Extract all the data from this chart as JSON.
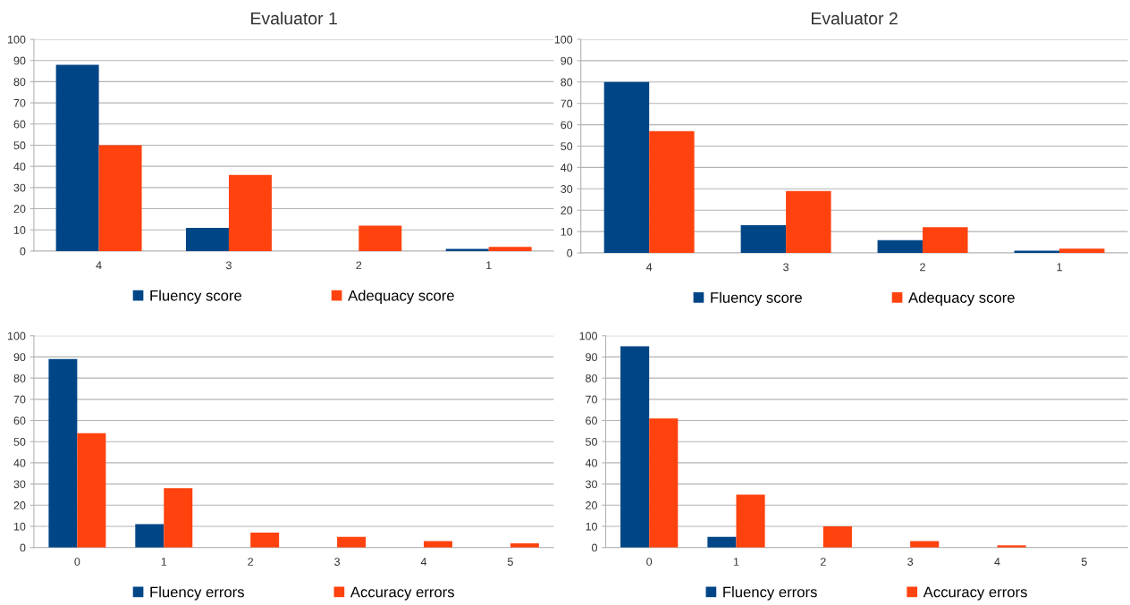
{
  "chart_data": [
    {
      "type": "bar",
      "title": "Evaluator 1",
      "categories": [
        "4",
        "3",
        "2",
        "1"
      ],
      "ylim": [
        0,
        100
      ],
      "yticks": [
        0,
        10,
        20,
        30,
        40,
        50,
        60,
        70,
        80,
        90,
        100
      ],
      "grid": "y",
      "legend": "bottom",
      "series": [
        {
          "name": "Fluency score",
          "color": "#004586",
          "values": [
            88,
            11,
            0,
            1
          ]
        },
        {
          "name": "Adequacy score",
          "color": "#ff420e",
          "values": [
            50,
            36,
            12,
            2
          ]
        }
      ]
    },
    {
      "type": "bar",
      "title": "Evaluator 2",
      "categories": [
        "4",
        "3",
        "2",
        "1"
      ],
      "ylim": [
        0,
        100
      ],
      "yticks": [
        0,
        10,
        20,
        30,
        40,
        50,
        60,
        70,
        80,
        90,
        100
      ],
      "grid": "y",
      "legend": "bottom",
      "series": [
        {
          "name": "Fluency score",
          "color": "#004586",
          "values": [
            80,
            13,
            6,
            1
          ]
        },
        {
          "name": "Adequacy score",
          "color": "#ff420e",
          "values": [
            57,
            29,
            12,
            2
          ]
        }
      ]
    },
    {
      "type": "bar",
      "categories": [
        "0",
        "1",
        "2",
        "3",
        "4",
        "5"
      ],
      "ylim": [
        0,
        100
      ],
      "yticks": [
        0,
        10,
        20,
        30,
        40,
        50,
        60,
        70,
        80,
        90,
        100
      ],
      "grid": "y",
      "legend": "bottom",
      "series": [
        {
          "name": "Fluency errors",
          "color": "#004586",
          "values": [
            89,
            11,
            0,
            0,
            0,
            0
          ]
        },
        {
          "name": "Accuracy errors",
          "color": "#ff420e",
          "values": [
            54,
            28,
            7,
            5,
            3,
            2
          ]
        }
      ]
    },
    {
      "type": "bar",
      "categories": [
        "0",
        "1",
        "2",
        "3",
        "4",
        "5"
      ],
      "ylim": [
        0,
        100
      ],
      "yticks": [
        0,
        10,
        20,
        30,
        40,
        50,
        60,
        70,
        80,
        90,
        100
      ],
      "grid": "y",
      "legend": "bottom",
      "series": [
        {
          "name": "Fluency errors",
          "color": "#004586",
          "values": [
            95,
            5,
            0,
            0,
            0,
            0
          ]
        },
        {
          "name": "Accuracy errors",
          "color": "#ff420e",
          "values": [
            61,
            25,
            10,
            3,
            1,
            0
          ]
        }
      ]
    }
  ]
}
